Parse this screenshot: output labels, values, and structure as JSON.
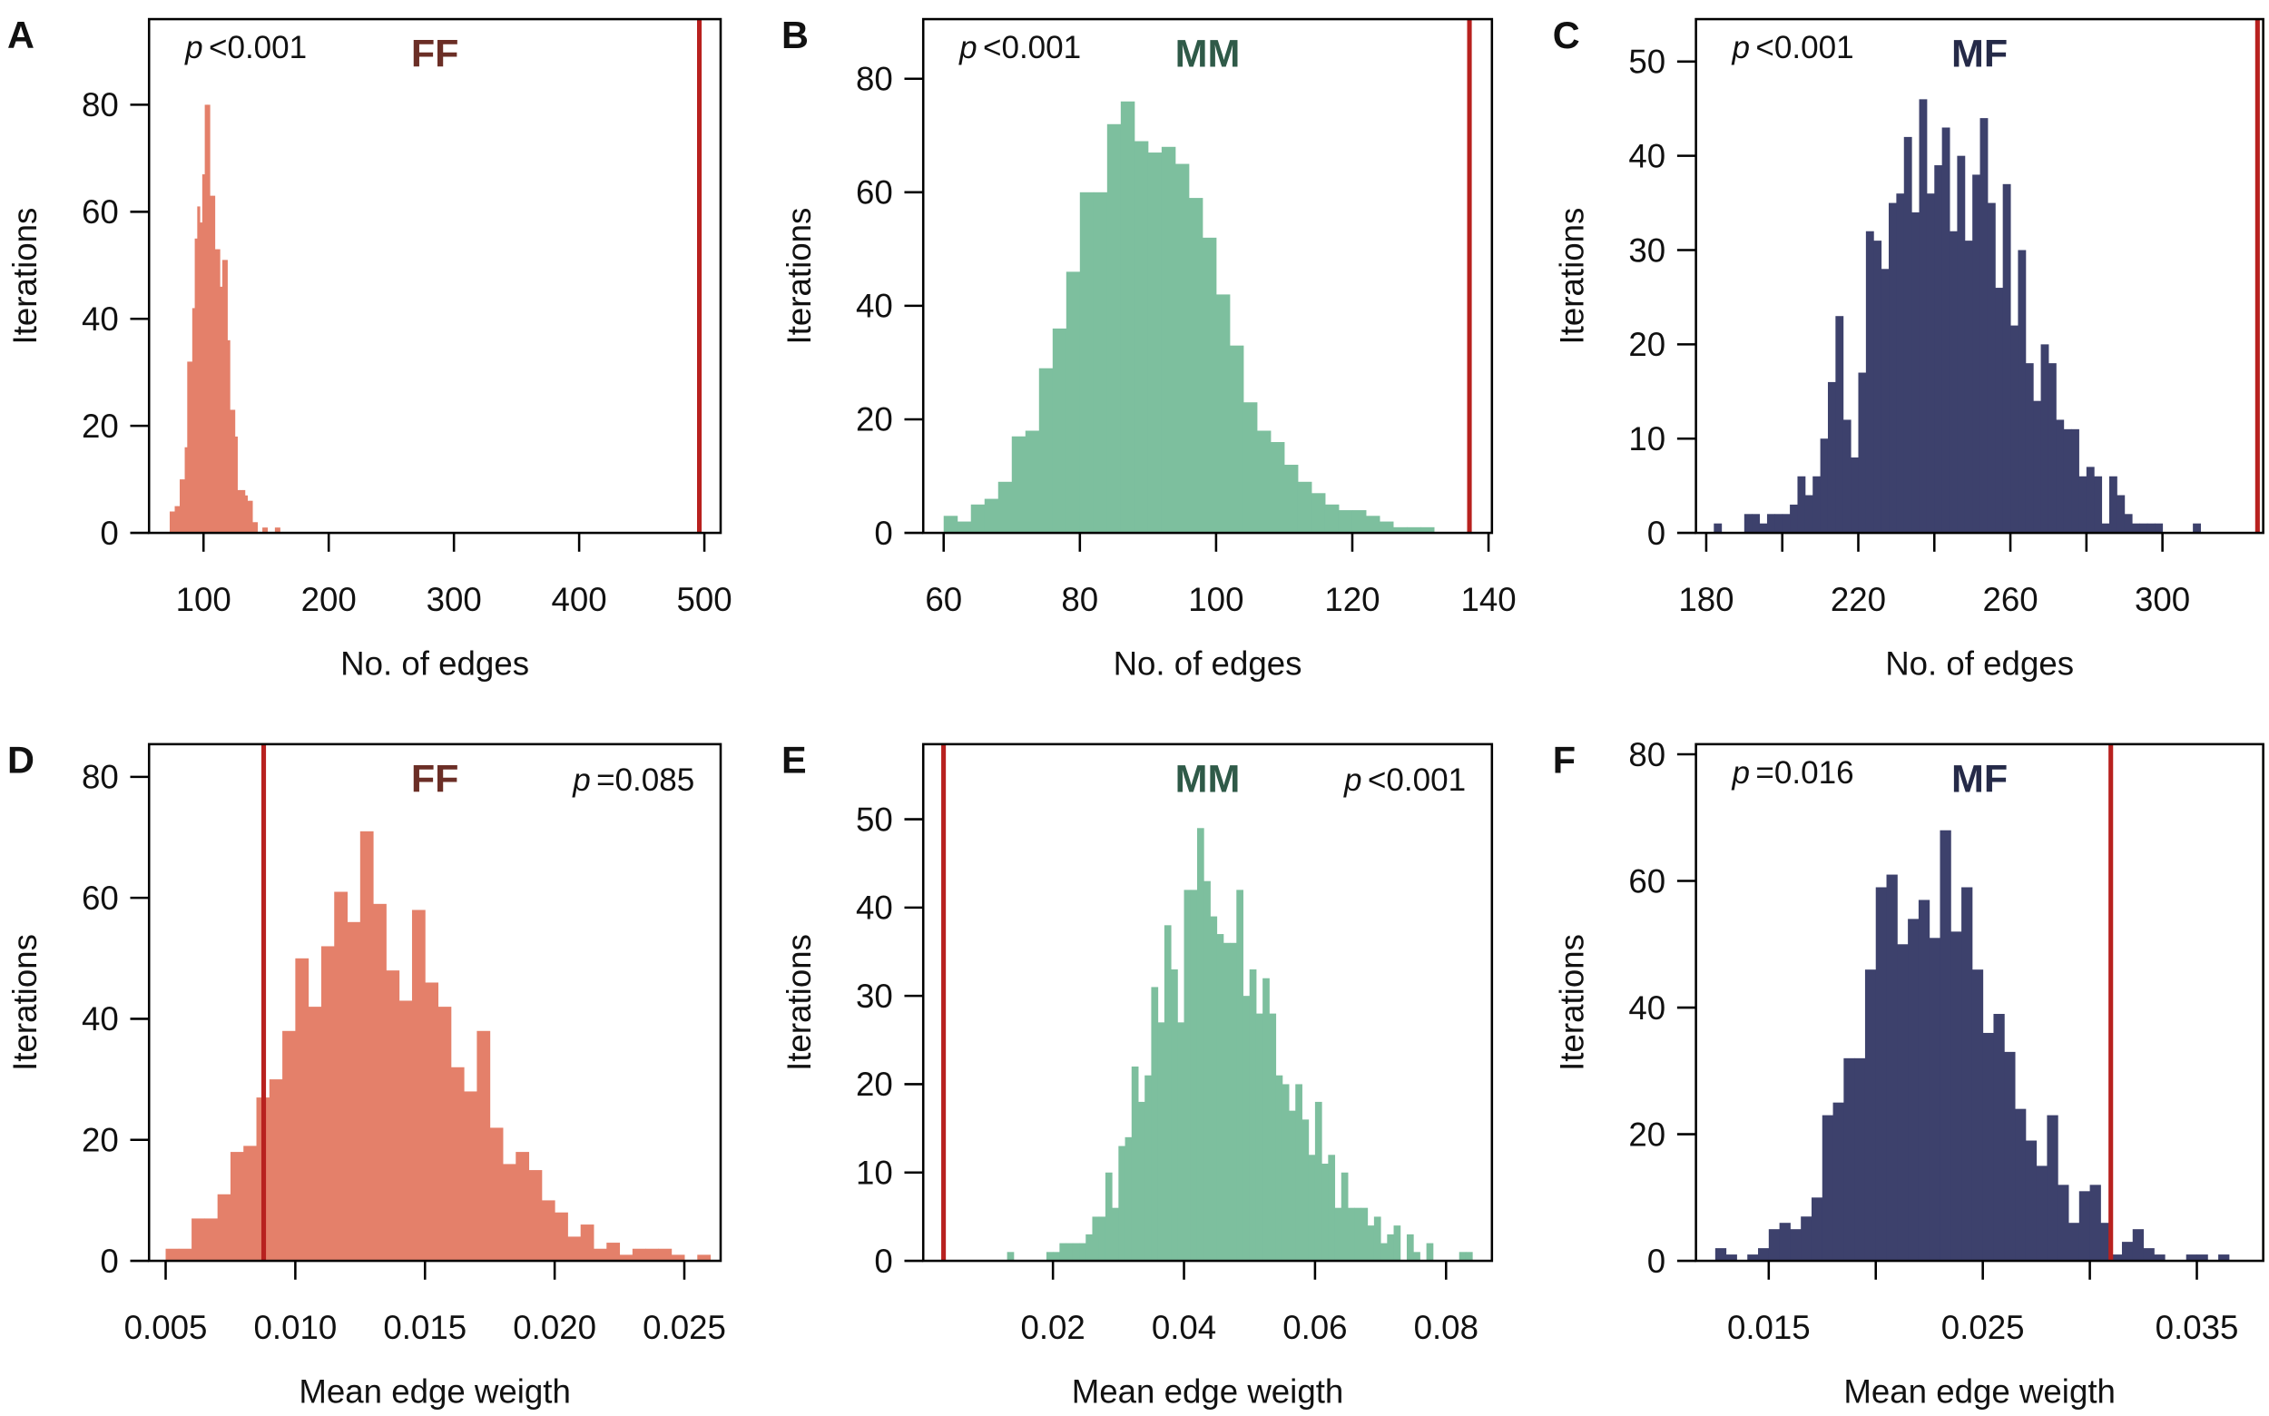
{
  "colors": {
    "FF_bar": "#e4806a",
    "MM_bar": "#7dbf9e",
    "MF_bar": "#3d416c",
    "FF_title": "#6b2e26",
    "MM_title": "#2f5a48",
    "MF_title": "#252a48",
    "observed_line": "#b8211f"
  },
  "chart_data": [
    {
      "type": "bar",
      "panel": "A",
      "title": "FF",
      "group": "FF",
      "p_symbol": "p",
      "p_text": "<0.001",
      "xlabel": "No. of edges",
      "ylabel": "Iterations",
      "xlim": [
        56.5,
        513
      ],
      "ylim": [
        0,
        96
      ],
      "x_ticks": [
        {
          "value": 100,
          "label": "100"
        },
        {
          "value": 200,
          "label": "200"
        },
        {
          "value": 300,
          "label": "300"
        },
        {
          "value": 400,
          "label": "400"
        },
        {
          "value": 500,
          "label": "500"
        }
      ],
      "y_ticks": [
        {
          "value": 0,
          "label": "0"
        },
        {
          "value": 20,
          "label": "20"
        },
        {
          "value": 40,
          "label": "40"
        },
        {
          "value": 60,
          "label": "60"
        },
        {
          "value": 80,
          "label": "80"
        }
      ],
      "bin_start": 73,
      "bin_width": 2,
      "counts": [
        4,
        4,
        5,
        5,
        10,
        10,
        16,
        32,
        32,
        42,
        55,
        61,
        58,
        67,
        80,
        80,
        63,
        63,
        53,
        53,
        46,
        51,
        51,
        36,
        23,
        23,
        18,
        8,
        8,
        8,
        7,
        6,
        6,
        2,
        2,
        0,
        0,
        1,
        1,
        0,
        0,
        0,
        1,
        1
      ],
      "observed_value": 496
    },
    {
      "type": "bar",
      "panel": "B",
      "title": "MM",
      "group": "MM",
      "p_symbol": "p",
      "p_text": "<0.001",
      "xlabel": "No. of edges",
      "ylabel": "Iterations",
      "xlim": [
        57,
        140.5
      ],
      "ylim": [
        0,
        90.5
      ],
      "x_ticks": [
        {
          "value": 60,
          "label": "60"
        },
        {
          "value": 80,
          "label": "80"
        },
        {
          "value": 100,
          "label": "100"
        },
        {
          "value": 120,
          "label": "120"
        },
        {
          "value": 140,
          "label": "140"
        }
      ],
      "y_ticks": [
        {
          "value": 0,
          "label": "0"
        },
        {
          "value": 20,
          "label": "20"
        },
        {
          "value": 40,
          "label": "40"
        },
        {
          "value": 60,
          "label": "60"
        },
        {
          "value": 80,
          "label": "80"
        }
      ],
      "bin_start": 60,
      "bin_width": 2,
      "counts": [
        3,
        2,
        5,
        6,
        9,
        17,
        18,
        29,
        36,
        46,
        60,
        60,
        72,
        76,
        69,
        67,
        68,
        65,
        59,
        52,
        42,
        33,
        23,
        18,
        16,
        12,
        9,
        7,
        5,
        4,
        4,
        3,
        2,
        1,
        1,
        1
      ],
      "observed_value": 137.2
    },
    {
      "type": "bar",
      "panel": "C",
      "title": "MF",
      "group": "MF",
      "p_symbol": "p",
      "p_text": "<0.001",
      "xlabel": "No. of edges",
      "ylabel": "Iterations",
      "xlim": [
        177.3,
        326.5
      ],
      "ylim": [
        0,
        54.5
      ],
      "x_ticks": [
        {
          "value": 180,
          "label": "180"
        },
        {
          "value": 200,
          "label": null
        },
        {
          "value": 220,
          "label": "220"
        },
        {
          "value": 240,
          "label": null
        },
        {
          "value": 260,
          "label": "260"
        },
        {
          "value": 280,
          "label": null
        },
        {
          "value": 300,
          "label": "300"
        }
      ],
      "y_ticks": [
        {
          "value": 0,
          "label": "0"
        },
        {
          "value": 10,
          "label": "10"
        },
        {
          "value": 20,
          "label": "20"
        },
        {
          "value": 30,
          "label": "30"
        },
        {
          "value": 40,
          "label": "40"
        },
        {
          "value": 50,
          "label": "50"
        }
      ],
      "bin_start": 182,
      "bin_width": 2,
      "counts": [
        1,
        0,
        0,
        0,
        2,
        2,
        1,
        2,
        2,
        2,
        3,
        6,
        4,
        6,
        10,
        16,
        23,
        12,
        8,
        17,
        32,
        31,
        28,
        35,
        36,
        42,
        34,
        46,
        36,
        39,
        43,
        32,
        40,
        31,
        38,
        44,
        35,
        26,
        37,
        22,
        30,
        18,
        14,
        20,
        18,
        12,
        11,
        11,
        6,
        7,
        6,
        1,
        6,
        4,
        2,
        1,
        1,
        1,
        1,
        0,
        0,
        0,
        0,
        1
      ],
      "observed_value": 325
    },
    {
      "type": "bar",
      "panel": "D",
      "title": "FF",
      "group": "FF",
      "p_symbol": "p",
      "p_text": "=0.085",
      "xlabel": "Mean edge weigth",
      "ylabel": "Iterations",
      "xlim": [
        0.00436,
        0.0264
      ],
      "ylim": [
        0,
        85.4
      ],
      "x_ticks": [
        {
          "value": 0.005,
          "label": "0.005"
        },
        {
          "value": 0.01,
          "label": "0.010"
        },
        {
          "value": 0.015,
          "label": "0.015"
        },
        {
          "value": 0.02,
          "label": "0.020"
        },
        {
          "value": 0.025,
          "label": "0.025"
        }
      ],
      "y_ticks": [
        {
          "value": 0,
          "label": "0"
        },
        {
          "value": 20,
          "label": "20"
        },
        {
          "value": 40,
          "label": "40"
        },
        {
          "value": 60,
          "label": "60"
        },
        {
          "value": 80,
          "label": "80"
        }
      ],
      "bin_start": 0.005,
      "bin_width": 0.0005,
      "counts": [
        2,
        2,
        7,
        7,
        11,
        18,
        19,
        27,
        30,
        38,
        50,
        42,
        52,
        61,
        56,
        71,
        59,
        48,
        43,
        58,
        46,
        42,
        32,
        28,
        38,
        22,
        16,
        18,
        15,
        10,
        8,
        4,
        6,
        2,
        3,
        1,
        2,
        2,
        2,
        1,
        0,
        1
      ],
      "observed_value": 0.00878
    },
    {
      "type": "bar",
      "panel": "E",
      "title": "MM",
      "group": "MM",
      "p_symbol": "p",
      "p_text": "<0.001",
      "xlabel": "Mean edge weigth",
      "ylabel": "Iterations",
      "xlim": [
        0.0002,
        0.087
      ],
      "ylim": [
        0,
        58.5
      ],
      "x_ticks": [
        {
          "value": 0.02,
          "label": "0.02"
        },
        {
          "value": 0.04,
          "label": "0.04"
        },
        {
          "value": 0.06,
          "label": "0.06"
        },
        {
          "value": 0.08,
          "label": "0.08"
        }
      ],
      "y_ticks": [
        {
          "value": 0,
          "label": "0"
        },
        {
          "value": 10,
          "label": "10"
        },
        {
          "value": 20,
          "label": "20"
        },
        {
          "value": 30,
          "label": "30"
        },
        {
          "value": 40,
          "label": "40"
        },
        {
          "value": 50,
          "label": "50"
        }
      ],
      "bin_start": 0.012,
      "bin_width": 0.001,
      "counts": [
        0,
        1,
        0,
        0,
        0,
        0,
        0,
        1,
        1,
        2,
        2,
        2,
        2,
        3,
        5,
        5,
        10,
        6,
        13,
        14,
        22,
        18,
        21,
        31,
        27,
        38,
        33,
        27,
        42,
        42,
        49,
        43,
        39,
        37,
        36,
        36,
        42,
        30,
        33,
        28,
        32,
        28,
        21,
        20,
        17,
        20,
        16,
        12,
        18,
        11,
        12,
        6,
        10,
        6,
        6,
        6,
        4,
        5,
        2,
        3,
        4,
        0,
        3,
        1,
        0,
        2,
        0,
        0,
        0,
        0,
        1,
        1
      ],
      "observed_value": 0.0033
    },
    {
      "type": "bar",
      "panel": "F",
      "title": "MF",
      "group": "MF",
      "p_symbol": "p",
      "p_text": "=0.016",
      "xlabel": "Mean edge weigth",
      "ylabel": "Iterations",
      "xlim": [
        0.0116,
        0.0381
      ],
      "ylim": [
        0,
        81.6
      ],
      "x_ticks": [
        {
          "value": 0.015,
          "label": "0.015"
        },
        {
          "value": 0.02,
          "label": null
        },
        {
          "value": 0.025,
          "label": "0.025"
        },
        {
          "value": 0.03,
          "label": null
        },
        {
          "value": 0.035,
          "label": "0.035"
        }
      ],
      "y_ticks": [
        {
          "value": 0,
          "label": "0"
        },
        {
          "value": 20,
          "label": "20"
        },
        {
          "value": 40,
          "label": "40"
        },
        {
          "value": 60,
          "label": "60"
        },
        {
          "value": 80,
          "label": "80"
        }
      ],
      "bin_start": 0.0125,
      "bin_width": 0.0005,
      "counts": [
        2,
        1,
        0,
        1,
        2,
        5,
        6,
        5,
        7,
        10,
        23,
        25,
        32,
        32,
        46,
        59,
        61,
        50,
        54,
        57,
        51,
        68,
        52,
        59,
        46,
        36,
        39,
        33,
        24,
        19,
        15,
        23,
        12,
        6,
        11,
        12,
        6,
        1,
        3,
        5,
        2,
        1,
        0,
        0,
        1,
        1,
        0,
        1
      ],
      "observed_value": 0.03098
    }
  ]
}
